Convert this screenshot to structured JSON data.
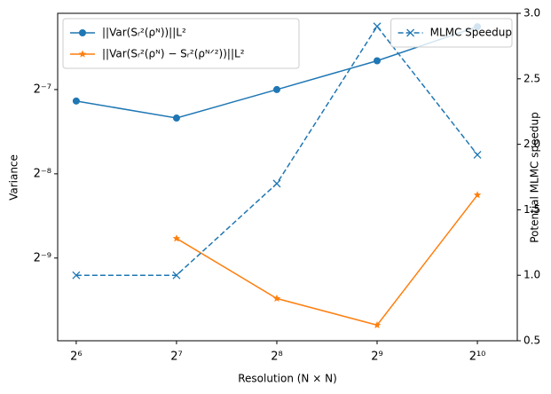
{
  "chart_data": {
    "type": "line",
    "xlabel": "Resolution (N × N)",
    "ylabel": "Variance",
    "y2label": "Potential MLMC speedup",
    "xscale": "log2",
    "yscale": "log2",
    "x": [
      64,
      128,
      256,
      512,
      1024
    ],
    "xlim": [
      56.3,
      1349
    ],
    "ylim": [
      0.000989,
      0.01463
    ],
    "y2lim": [
      0.5,
      3.0
    ],
    "xticks": [
      {
        "value": 64,
        "label": "2⁶"
      },
      {
        "value": 128,
        "label": "2⁷"
      },
      {
        "value": 256,
        "label": "2⁸"
      },
      {
        "value": 512,
        "label": "2⁹"
      },
      {
        "value": 1024,
        "label": "2¹⁰"
      }
    ],
    "yticks": [
      {
        "value": 0.001953125,
        "label": "2⁻⁹"
      },
      {
        "value": 0.00390625,
        "label": "2⁻⁸"
      },
      {
        "value": 0.0078125,
        "label": "2⁻⁷"
      }
    ],
    "y2ticks": [
      {
        "value": 0.5,
        "label": "0.5"
      },
      {
        "value": 1.0,
        "label": "1.0"
      },
      {
        "value": 1.5,
        "label": "1.5"
      },
      {
        "value": 2.0,
        "label": "2.0"
      },
      {
        "value": 2.5,
        "label": "2.5"
      },
      {
        "value": 3.0,
        "label": "3.0"
      }
    ],
    "legend": "upper left",
    "y2legend": "upper right",
    "series": [
      {
        "name": "||Var(Sᵣ²(ρᴺ))||L²",
        "color": "#1f77b4",
        "marker": "circle",
        "linestyle": "solid",
        "values": [
          0.00711,
          0.00618,
          0.0078125,
          0.0099,
          0.0131
        ]
      },
      {
        "name": "||Var(Sᵣ²(ρᴺ) − Sᵣ²(ρᴺᐟ²))||L²",
        "color": "#ff7f0e",
        "marker": "star",
        "linestyle": "solid",
        "values": [
          null,
          0.002295,
          0.0014,
          0.001125,
          0.00328
        ]
      },
      {
        "name": "MLMC Speedup",
        "color": "#1f77b4",
        "marker": "x",
        "linestyle": "dashed",
        "axis": "y2",
        "values": [
          1.0,
          1.0,
          1.7,
          2.9,
          1.92
        ]
      }
    ]
  }
}
